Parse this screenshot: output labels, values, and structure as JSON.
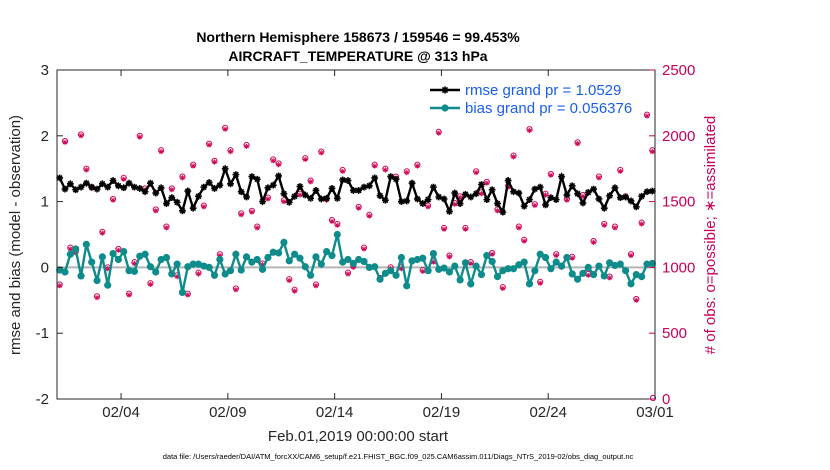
{
  "chart_data": {
    "type": "line",
    "title": "Northern Hemisphere 158673 / 159546 = 99.453%",
    "subtitle": "AIRCRAFT_TEMPERATURE @ 313 hPa",
    "xlabel": "Feb.01,2019 00:00:00 start",
    "ylabel_left": "rmse and bias (model - observation)",
    "ylabel_right": "# of obs: o=possible; ∗=assimilated",
    "footer": "data file: /Users/raeder/DAI/ATM_forcXX/CAM6_setup/f.e21.FHIST_BGC.f09_025.CAM6assim.011/Diags_NTrS_2019-02/obs_diag_output.nc",
    "xlim": [
      0,
      28
    ],
    "ylim_left": [
      -2,
      3
    ],
    "ylim_right": [
      0,
      2500
    ],
    "x_ticks": [
      {
        "value": 3,
        "label": "02/04"
      },
      {
        "value": 8,
        "label": "02/09"
      },
      {
        "value": 13,
        "label": "02/14"
      },
      {
        "value": 18,
        "label": "02/19"
      },
      {
        "value": 23,
        "label": "02/24"
      },
      {
        "value": 28,
        "label": "03/01"
      }
    ],
    "y_ticks_left": [
      {
        "value": -2,
        "label": "-2"
      },
      {
        "value": -1,
        "label": "-1"
      },
      {
        "value": 0,
        "label": "0"
      },
      {
        "value": 1,
        "label": "1"
      },
      {
        "value": 2,
        "label": "2"
      },
      {
        "value": 3,
        "label": "3"
      }
    ],
    "y_ticks_right": [
      {
        "value": 0,
        "label": "0"
      },
      {
        "value": 500,
        "label": "500"
      },
      {
        "value": 1000,
        "label": "1000"
      },
      {
        "value": 1500,
        "label": "1500"
      },
      {
        "value": 2000,
        "label": "2000"
      },
      {
        "value": 2500,
        "label": "2500"
      }
    ],
    "x_step_days": 0.25,
    "legend_position": "top-right",
    "colors": {
      "rmse": "#000000",
      "bias": "#0e8c8c",
      "obs": "#d10a5a",
      "zero_line": "#b4b4b4",
      "legend_text": "#1a5ee8"
    },
    "series": [
      {
        "name": "rmse grand pr = 1.0529",
        "color": "#000000",
        "marker": "asterisk",
        "values": [
          1.36,
          1.19,
          1.27,
          1.18,
          1.22,
          1.28,
          1.22,
          1.19,
          1.27,
          1.22,
          1.32,
          1.24,
          1.21,
          1.28,
          1.22,
          1.2,
          1.15,
          1.28,
          1.13,
          1.21,
          0.97,
          1.06,
          0.99,
          0.86,
          1.16,
          0.9,
          1.08,
          1.22,
          1.29,
          1.2,
          1.25,
          1.5,
          1.27,
          1.41,
          1.15,
          1.07,
          1.38,
          1.34,
          1.0,
          1.21,
          1.25,
          1.39,
          1.12,
          0.99,
          1.08,
          1.23,
          1.1,
          1.05,
          1.17,
          1.04,
          1.05,
          1.2,
          1.05,
          1.33,
          1.32,
          1.17,
          1.17,
          1.22,
          1.24,
          1.36,
          1.09,
          1.02,
          1.38,
          1.34,
          1.0,
          1.01,
          1.28,
          1.04,
          0.97,
          1.03,
          1.22,
          1.07,
          1.04,
          0.85,
          1.13,
          0.97,
          1.11,
          1.07,
          1.12,
          1.26,
          1.03,
          1.18,
          0.97,
          0.84,
          1.32,
          1.15,
          1.13,
          0.93,
          1.03,
          1.19,
          1.22,
          0.95,
          1.06,
          1.03,
          1.38,
          1.1,
          1.24,
          1.12,
          0.98,
          1.14,
          1.19,
          1.04,
          0.9,
          1.09,
          1.21,
          1.06,
          1.07,
          1.01,
          0.92,
          1.08,
          1.15,
          1.16
        ]
      },
      {
        "name": "bias grand pr = 0.056376",
        "color": "#0e8c8c",
        "marker": "circle",
        "values": [
          -0.04,
          -0.07,
          0.2,
          0.28,
          -0.13,
          0.35,
          0.08,
          -0.2,
          0.16,
          -0.27,
          0.21,
          0.12,
          0.24,
          -0.05,
          -0.06,
          0.17,
          0.2,
          0.01,
          -0.07,
          0.12,
          0.15,
          -0.1,
          0.05,
          -0.38,
          0.01,
          0.05,
          0.05,
          0.02,
          0.0,
          -0.12,
          0.12,
          -0.1,
          -0.05,
          0.2,
          -0.04,
          0.16,
          0.08,
          0.12,
          -0.03,
          0.15,
          0.23,
          0.22,
          0.38,
          0.1,
          0.2,
          0.14,
          0.01,
          -0.12,
          0.16,
          0.05,
          0.24,
          0.18,
          0.5,
          0.08,
          0.12,
          0.06,
          0.12,
          0.09,
          0.0,
          0.01,
          -0.18,
          -0.09,
          -0.05,
          -0.12,
          0.15,
          -0.28,
          0.1,
          0.12,
          0.14,
          -0.05,
          0.21,
          -0.03,
          -0.01,
          -0.07,
          0.02,
          -0.19,
          0.07,
          -0.25,
          0.02,
          -0.11,
          0.18,
          0.09,
          -0.14,
          -0.05,
          -0.02,
          -0.02,
          0.04,
          0.08,
          -0.25,
          -0.05,
          0.2,
          0.15,
          -0.02,
          0.08,
          0.02,
          0.15,
          -0.1,
          -0.18,
          -0.09,
          0.0,
          -0.11,
          0.02,
          -0.13,
          0.07,
          0.03,
          0.05,
          -0.05,
          -0.25,
          -0.11,
          -0.14,
          0.05,
          0.06
        ]
      },
      {
        "name": "obs possible",
        "color": "#d10a5a",
        "marker": "o",
        "axis": "right",
        "values": [
          870,
          1960,
          1150,
          1120,
          2010,
          1750,
          1610,
          780,
          1270,
          1000,
          1520,
          1140,
          1680,
          800,
          1040,
          2000,
          1600,
          880,
          1440,
          1890,
          1310,
          1600,
          940,
          1690,
          800,
          1780,
          960,
          1470,
          1940,
          1810,
          1100,
          2060,
          1890,
          840,
          1410,
          1930,
          1430,
          1310,
          1030,
          1530,
          1820,
          1790,
          1510,
          910,
          830,
          1560,
          1830,
          1660,
          870,
          1880,
          1520,
          1360,
          1330,
          1740,
          960,
          1010,
          1460,
          1150,
          1400,
          1780,
          920,
          1750,
          1000,
          1690,
          1000,
          1730,
          1050,
          1780,
          980,
          1470,
          1050,
          2030,
          1300,
          1090,
          1490,
          1540,
          1300,
          1040,
          1730,
          1570,
          1650,
          1110,
          1440,
          850,
          1620,
          1850,
          1310,
          1210,
          2050,
          1480,
          890,
          1560,
          1710,
          1100,
          1010,
          1520,
          1080,
          1950,
          1550,
          950,
          1200,
          1690,
          1330,
          930,
          1310,
          1740,
          1540,
          1100,
          760,
          1340,
          2160,
          1890
        ]
      },
      {
        "name": "obs assimilated",
        "color": "#d10a5a",
        "marker": "asterisk",
        "axis": "right",
        "values": [
          860,
          1950,
          1140,
          1110,
          2000,
          1740,
          1600,
          770,
          1260,
          990,
          1510,
          1130,
          1670,
          790,
          1030,
          1990,
          1590,
          870,
          1430,
          1880,
          1300,
          1590,
          930,
          1680,
          790,
          1770,
          950,
          1460,
          1930,
          1800,
          1090,
          2050,
          1880,
          830,
          1400,
          1920,
          1420,
          1300,
          1020,
          1520,
          1810,
          1780,
          1500,
          900,
          820,
          1550,
          1820,
          1650,
          860,
          1870,
          1510,
          1350,
          1320,
          1730,
          950,
          1000,
          1450,
          1140,
          1390,
          1770,
          910,
          1740,
          990,
          1680,
          990,
          1720,
          1040,
          1770,
          970,
          1460,
          1040,
          2020,
          1290,
          1080,
          1480,
          1530,
          1290,
          1030,
          1720,
          1560,
          1640,
          1100,
          1430,
          840,
          1610,
          1840,
          1300,
          1200,
          2040,
          1470,
          880,
          1550,
          1700,
          1090,
          1000,
          1510,
          1070,
          1940,
          1540,
          940,
          1190,
          1680,
          1320,
          920,
          1300,
          1730,
          1530,
          1090,
          750,
          1330,
          2150,
          1880
        ]
      }
    ]
  }
}
